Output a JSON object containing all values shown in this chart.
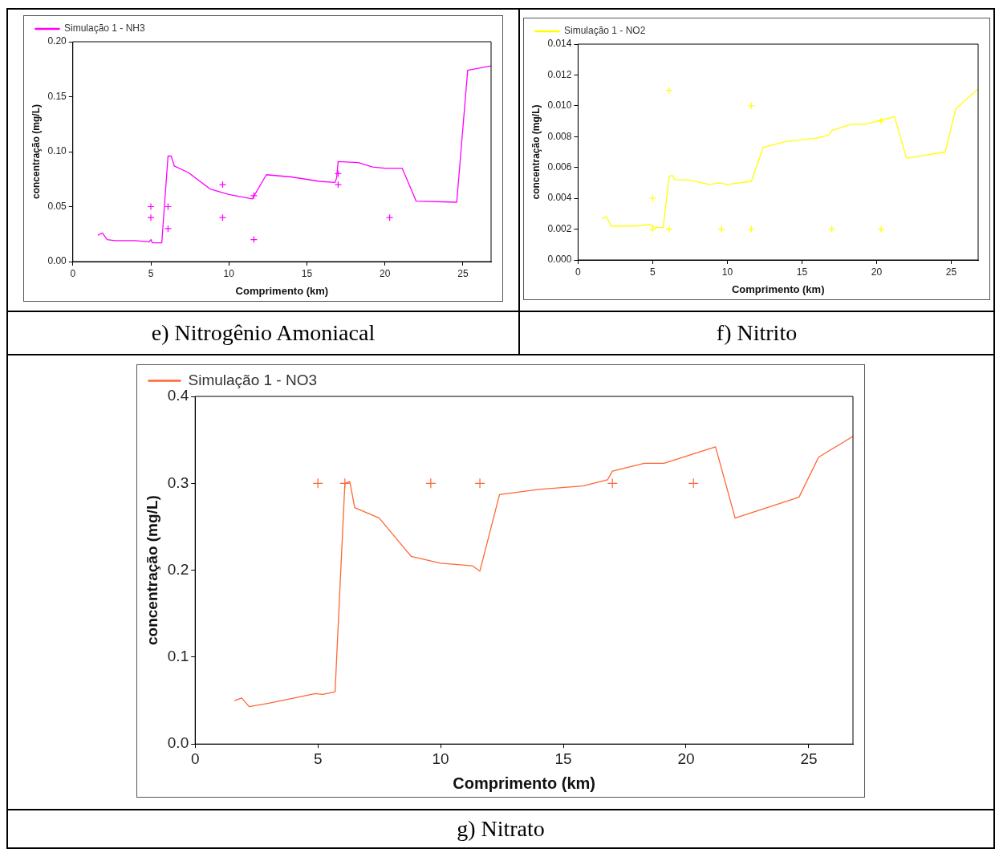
{
  "chart_data": [
    {
      "type": "line",
      "xlabel": "Comprimento (km)",
      "ylabel": "concentração (mg/L)",
      "xlim": [
        0,
        26.8
      ],
      "xticks": [
        0,
        5,
        10,
        15,
        20,
        25
      ],
      "ylim": [
        0,
        0.2
      ],
      "yticks": [
        {
          "value": 0,
          "label": "0.00"
        },
        {
          "value": 0.05,
          "label": "0.05"
        },
        {
          "value": 0.1,
          "label": "0.10"
        },
        {
          "value": 0.15,
          "label": "0.15"
        },
        {
          "value": 0.2,
          "label": "0.20"
        }
      ],
      "grid": false,
      "legend": "top left",
      "annotations": [
        "e)  Nitrogênio Amoniacal"
      ],
      "series": [
        {
          "name": "Simulação 1 - NH3",
          "marker": "none",
          "color": "#ff00ff",
          "x": [
            1.6,
            1.9,
            2.2,
            2.7,
            4.0,
            4.9,
            5.0,
            5.1,
            5.7,
            6.1,
            6.3,
            6.5,
            7.4,
            8.8,
            10,
            11.5,
            12.4,
            14,
            15.8,
            16.8,
            16.9,
            17,
            18.3,
            19.2,
            20,
            21.1,
            22,
            24.6,
            25.3,
            26.8
          ],
          "values": [
            0.024,
            0.026,
            0.02,
            0.019,
            0.019,
            0.018,
            0.02,
            0.017,
            0.017,
            0.096,
            0.096,
            0.087,
            0.081,
            0.066,
            0.061,
            0.057,
            0.079,
            0.077,
            0.073,
            0.072,
            0.076,
            0.091,
            0.09,
            0.086,
            0.085,
            0.085,
            0.055,
            0.054,
            0.174,
            0.178
          ]
        },
        {
          "type": "scatter",
          "marker": "cross",
          "color": "#ff00ff",
          "x": [
            5,
            5,
            6.1,
            6.1,
            9.6,
            9.6,
            11.6,
            11.6,
            17,
            17,
            20.3
          ],
          "values": [
            0.05,
            0.04,
            0.05,
            0.03,
            0.07,
            0.04,
            0.06,
            0.02,
            0.08,
            0.07,
            0.04
          ]
        }
      ]
    },
    {
      "type": "line",
      "xlabel": "Comprimento (km)",
      "ylabel": "concentração (mg/L)",
      "xlim": [
        0,
        26.8
      ],
      "xticks": [
        0,
        5,
        10,
        15,
        20,
        25
      ],
      "ylim": [
        0,
        0.014
      ],
      "yticks": [
        {
          "value": 0,
          "label": "0.000"
        },
        {
          "value": 0.002,
          "label": "0.002"
        },
        {
          "value": 0.004,
          "label": "0.004"
        },
        {
          "value": 0.006,
          "label": "0.006"
        },
        {
          "value": 0.008,
          "label": "0.008"
        },
        {
          "value": 0.01,
          "label": "0.010"
        },
        {
          "value": 0.012,
          "label": "0.012"
        },
        {
          "value": 0.014,
          "label": "0.014"
        }
      ],
      "grid": false,
      "legend": "top left",
      "annotations": [
        "f)  Nitrito"
      ],
      "series": [
        {
          "name": "Simulação 1 - NO2",
          "marker": "none",
          "color": "#ffff00",
          "x": [
            1.6,
            1.9,
            2.2,
            3,
            3.6,
            4.9,
            5.0,
            5.2,
            5.7,
            6.1,
            6.3,
            6.5,
            7.4,
            8.8,
            9.5,
            10,
            11.6,
            12.4,
            14,
            16,
            16.8,
            17,
            18.3,
            19.2,
            21.2,
            22,
            24.6,
            25.3,
            26.8
          ],
          "values": [
            0.0027,
            0.0028,
            0.0022,
            0.0022,
            0.0022,
            0.0023,
            0.0022,
            0.0021,
            0.0021,
            0.0054,
            0.0055,
            0.0052,
            0.0052,
            0.0049,
            0.005,
            0.0049,
            0.0051,
            0.0073,
            0.0077,
            0.0079,
            0.0081,
            0.0084,
            0.0088,
            0.0088,
            0.0093,
            0.0066,
            0.007,
            0.0098,
            0.0111
          ]
        },
        {
          "type": "scatter",
          "marker": "cross",
          "color": "#ffff00",
          "x": [
            5,
            5,
            6.1,
            6.1,
            9.6,
            11.6,
            11.6,
            17,
            20.3,
            20.3
          ],
          "values": [
            0.004,
            0.002,
            0.011,
            0.002,
            0.002,
            0.01,
            0.002,
            0.002,
            0.009,
            0.002
          ]
        }
      ]
    },
    {
      "type": "line",
      "xlabel": "Comprimento (km)",
      "ylabel": "concentração (mg/L)",
      "xlim": [
        0,
        26.8
      ],
      "xticks": [
        0,
        5,
        10,
        15,
        20,
        25
      ],
      "ylim": [
        0,
        0.4
      ],
      "yticks": [
        {
          "value": 0,
          "label": "0.0"
        },
        {
          "value": 0.1,
          "label": "0.1"
        },
        {
          "value": 0.2,
          "label": "0.2"
        },
        {
          "value": 0.3,
          "label": "0.3"
        },
        {
          "value": 0.4,
          "label": "0.4"
        }
      ],
      "grid": false,
      "legend": "top left",
      "annotations": [
        "g)  Nitrato"
      ],
      "series": [
        {
          "name": "Simulação 1 - NO3",
          "marker": "none",
          "color": "#ff6633",
          "x": [
            1.6,
            1.9,
            2.2,
            3,
            4.9,
            5.2,
            5.7,
            6.1,
            6.3,
            6.5,
            7.5,
            8.8,
            10,
            11.3,
            11.6,
            12.4,
            14,
            15.8,
            16.8,
            17,
            18.3,
            19.1,
            21.2,
            22,
            24.6,
            25.4,
            26.8
          ],
          "values": [
            0.05,
            0.053,
            0.043,
            0.047,
            0.058,
            0.057,
            0.06,
            0.3,
            0.302,
            0.272,
            0.26,
            0.216,
            0.208,
            0.205,
            0.199,
            0.287,
            0.293,
            0.297,
            0.304,
            0.314,
            0.323,
            0.323,
            0.342,
            0.26,
            0.284,
            0.33,
            0.354
          ]
        },
        {
          "type": "scatter",
          "marker": "cross",
          "color": "#ff6633",
          "x": [
            5,
            6.1,
            9.6,
            11.6,
            17,
            20.3
          ],
          "values": [
            0.3,
            0.3,
            0.3,
            0.3,
            0.3,
            0.3
          ]
        }
      ]
    }
  ]
}
